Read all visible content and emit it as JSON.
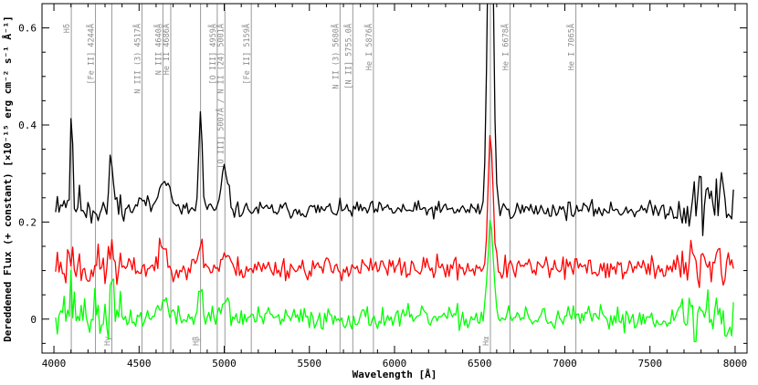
{
  "chart_data": {
    "type": "line",
    "xlabel": "Wavelength [Å]",
    "ylabel": "Dereddened Flux (+ constant) [×10⁻¹⁵ erg cm⁻² s⁻¹ Å⁻¹]",
    "xlim": [
      3930,
      8070
    ],
    "ylim": [
      -0.07,
      0.65
    ],
    "x_ticks": [
      4000,
      4500,
      5000,
      5500,
      6000,
      6500,
      7000,
      7500,
      8000
    ],
    "y_ticks": [
      0,
      0.2,
      0.4,
      0.6
    ],
    "grid": false,
    "legend": "none",
    "colors": {
      "top": "#000000",
      "middle": "#ff0000",
      "bottom": "#00ff00",
      "line_marker": "#999999"
    },
    "line_markers": [
      {
        "wavelength": 4102,
        "label": "Hδ",
        "pos": "top"
      },
      {
        "wavelength": 4244,
        "label": "[Fe II] 4244Å",
        "pos": "top"
      },
      {
        "wavelength": 4340,
        "label": "Hγ",
        "pos": "bottom"
      },
      {
        "wavelength": 4517,
        "label": "N III (3) 4517Å",
        "pos": "top"
      },
      {
        "wavelength": 4640,
        "label": "N III 4640Å",
        "pos": "top"
      },
      {
        "wavelength": 4686,
        "label": "He II 4686Å",
        "pos": "top"
      },
      {
        "wavelength": 4861,
        "label": "Hβ",
        "pos": "bottom"
      },
      {
        "wavelength": 4959,
        "label": "[O III] 4959Å",
        "pos": "top"
      },
      {
        "wavelength": 5004,
        "label": "[O III] 5007Å / N II (24) 5001Å",
        "pos": "top"
      },
      {
        "wavelength": 5159,
        "label": "[Fe II] 5159Å",
        "pos": "top"
      },
      {
        "wavelength": 5680,
        "label": "N II (3) 5680Å",
        "pos": "top"
      },
      {
        "wavelength": 5755,
        "label": "[N II] 5755.0Å",
        "pos": "top"
      },
      {
        "wavelength": 5876,
        "label": "He I 5876Å",
        "pos": "top"
      },
      {
        "wavelength": 6563,
        "label": "Hα",
        "pos": "bottom"
      },
      {
        "wavelength": 6678,
        "label": "He I 6678Å",
        "pos": "top"
      },
      {
        "wavelength": 7065,
        "label": "He I 7065Å",
        "pos": "top"
      }
    ],
    "series": [
      {
        "color": "#000000",
        "x_start": 4010,
        "x_end": 7990,
        "step": 10,
        "baseline": 0.225,
        "start_level": 0.27,
        "blue_drift": 0.04,
        "features": [
          {
            "center": 4102,
            "amp": 0.19,
            "width": 6
          },
          {
            "center": 4340,
            "amp": 0.1,
            "width": 12
          },
          {
            "center": 4520,
            "amp": 0.02,
            "width": 30
          },
          {
            "center": 4640,
            "amp": 0.07,
            "width": 25
          },
          {
            "center": 4686,
            "amp": 0.03,
            "width": 12
          },
          {
            "center": 4861,
            "amp": 0.2,
            "width": 10
          },
          {
            "center": 5004,
            "amp": 0.09,
            "width": 18
          },
          {
            "center": 6563,
            "amp": 0.8,
            "width": 16
          },
          {
            "center": 7850,
            "amp": 0.03,
            "width": 60
          }
        ],
        "noise": 0.013,
        "red_noise": 0.04,
        "seed": 11
      },
      {
        "color": "#ff0000",
        "x_start": 4010,
        "x_end": 7990,
        "step": 10,
        "baseline": 0.105,
        "start_level": 0.12,
        "blue_drift": 0.035,
        "features": [
          {
            "center": 4102,
            "amp": 0.04,
            "width": 6
          },
          {
            "center": 4340,
            "amp": 0.05,
            "width": 10
          },
          {
            "center": 4640,
            "amp": 0.04,
            "width": 25
          },
          {
            "center": 4861,
            "amp": 0.06,
            "width": 12
          },
          {
            "center": 5004,
            "amp": 0.03,
            "width": 18
          },
          {
            "center": 6563,
            "amp": 0.28,
            "width": 14
          },
          {
            "center": 7850,
            "amp": 0.02,
            "width": 60
          }
        ],
        "noise": 0.018,
        "red_noise": 0.035,
        "seed": 23
      },
      {
        "color": "#00ff00",
        "x_start": 4010,
        "x_end": 7990,
        "step": 10,
        "baseline": 0.002,
        "start_level": 0.05,
        "blue_drift": 0.04,
        "features": [
          {
            "center": 4102,
            "amp": 0.04,
            "width": 6
          },
          {
            "center": 4340,
            "amp": 0.06,
            "width": 10
          },
          {
            "center": 4640,
            "amp": 0.04,
            "width": 25
          },
          {
            "center": 4861,
            "amp": 0.08,
            "width": 10
          },
          {
            "center": 5004,
            "amp": 0.04,
            "width": 18
          },
          {
            "center": 6563,
            "amp": 0.21,
            "width": 16
          },
          {
            "center": 7850,
            "amp": 0.01,
            "width": 60
          }
        ],
        "noise": 0.018,
        "red_noise": 0.04,
        "seed": 37
      }
    ]
  }
}
